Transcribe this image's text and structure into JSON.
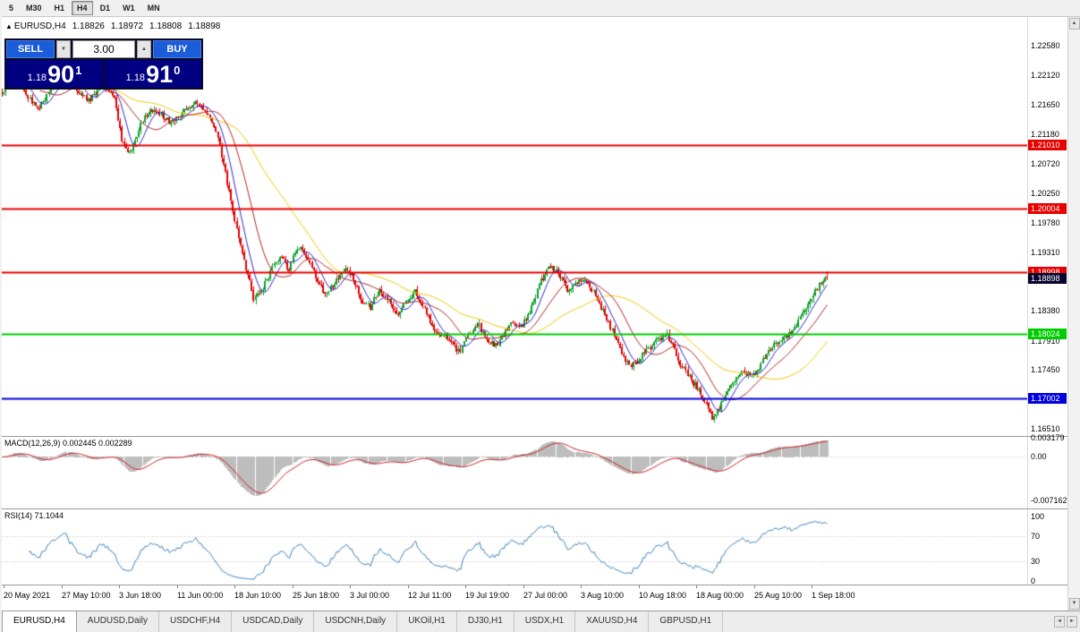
{
  "toolbar": {
    "timeframes": [
      {
        "label": "5",
        "active": false
      },
      {
        "label": "M30",
        "active": false
      },
      {
        "label": "H1",
        "active": false
      },
      {
        "label": "H4",
        "active": true
      },
      {
        "label": "D1",
        "active": false
      },
      {
        "label": "W1",
        "active": false
      },
      {
        "label": "MN",
        "active": false
      }
    ]
  },
  "header": {
    "symbol": "EURUSD,H4",
    "open": "1.18826",
    "high": "1.18972",
    "low": "1.18808",
    "close": "1.18898"
  },
  "icons": {
    "header_marker": "▲",
    "spinner_up": "▲",
    "spinner_down": "▼",
    "scroll_up": "▲",
    "scroll_down": "▼",
    "scroll_left": "◄",
    "scroll_right": "►"
  },
  "trade_panel": {
    "sell_label": "SELL",
    "buy_label": "BUY",
    "volume": "3.00",
    "sell_price": {
      "prefix": "1.18",
      "big": "90",
      "sup": "1"
    },
    "buy_price": {
      "prefix": "1.18",
      "big": "91",
      "sup": "0"
    }
  },
  "price_axis": {
    "ticks": [
      "1.22580",
      "1.22120",
      "1.21650",
      "1.21180",
      "1.20720",
      "1.20250",
      "1.19780",
      "1.19310",
      "1.18380",
      "1.17910",
      "1.17450",
      "1.16510"
    ],
    "current": {
      "label": "1.18898",
      "bg": "#05052d"
    }
  },
  "levels": [
    {
      "label": "1.21010",
      "value": 1.2101,
      "color": "#e60000"
    },
    {
      "label": "1.20004",
      "value": 1.20004,
      "color": "#e60000"
    },
    {
      "label": "1.18998",
      "value": 1.18998,
      "color": "#e60000"
    },
    {
      "label": "1.18024",
      "value": 1.18024,
      "color": "#00cc00"
    },
    {
      "label": "1.17002",
      "value": 1.17002,
      "color": "#0000dd"
    }
  ],
  "macd": {
    "label": "MACD(12,26,9) 0.002445 0.002289",
    "ticks": [
      {
        "label": "0.003179",
        "value": 0.003179
      },
      {
        "label": "0.00",
        "value": 0
      },
      {
        "label": "-0.007162",
        "value": -0.007162
      }
    ],
    "hist_color": "#bdbdbd",
    "signal_color": "#cc2020"
  },
  "rsi": {
    "label": "RSI(14) 71.1044",
    "ticks": [
      {
        "label": "100",
        "value": 100
      },
      {
        "label": "70",
        "value": 70
      },
      {
        "label": "30",
        "value": 30
      },
      {
        "label": "0",
        "value": 0
      }
    ],
    "line_color": "#3c82be",
    "levels": [
      70,
      30
    ]
  },
  "time_axis": {
    "labels": [
      "20 May 2021",
      "27 May 10:00",
      "3 Jun 18:00",
      "11 Jun 00:00",
      "18 Jun 10:00",
      "25 Jun 18:00",
      "3 Jul 00:00",
      "12 Jul 11:00",
      "19 Jul 19:00",
      "27 Jul 00:00",
      "3 Aug 10:00",
      "10 Aug 18:00",
      "18 Aug 00:00",
      "25 Aug 10:00",
      "1 Sep 18:00"
    ]
  },
  "tabs": [
    {
      "label": "EURUSD,H4",
      "active": true
    },
    {
      "label": "AUDUSD,Daily",
      "active": false
    },
    {
      "label": "USDCHF,H4",
      "active": false
    },
    {
      "label": "USDCAD,Daily",
      "active": false
    },
    {
      "label": "USDCNH,Daily",
      "active": false
    },
    {
      "label": "UKOil,H1",
      "active": false
    },
    {
      "label": "DJ30,H1",
      "active": false
    },
    {
      "label": "USDX,H1",
      "active": false
    },
    {
      "label": "XAUUSD,H4",
      "active": false
    },
    {
      "label": "GBPUSD,H1",
      "active": false
    }
  ],
  "chart_data": {
    "type": "candlestick",
    "symbol": "EURUSD",
    "timeframe": "H4",
    "last_ohlc": {
      "open": 1.18826,
      "high": 1.18972,
      "low": 1.18808,
      "close": 1.18898
    },
    "bid": 1.18901,
    "ask": 1.1891,
    "price_range": {
      "top": 1.2304,
      "bottom": 1.164
    },
    "macd_range": {
      "max": 0.0033,
      "min": -0.0085
    },
    "up_color": "#0ca02c",
    "down_color": "#e00000",
    "ma_colors": {
      "fast": "#2828c8",
      "mid": "#b22222",
      "slow": "#f0c800"
    },
    "moving_average_periods": {
      "fast": 8,
      "mid": 21,
      "slow": 55
    },
    "indicators": {
      "macd": {
        "fast": 12,
        "slow": 26,
        "signal": 9,
        "last_main": 0.002445,
        "last_signal": 0.002289
      },
      "rsi": {
        "period": 14,
        "last": 71.1044
      }
    },
    "candle_count": 440,
    "candle_spacing": 2.1,
    "anchors": [
      [
        0,
        1.2185
      ],
      [
        14,
        1.2215
      ],
      [
        28,
        1.218
      ],
      [
        42,
        1.216
      ],
      [
        56,
        1.2195
      ],
      [
        70,
        1.2218
      ],
      [
        84,
        1.219
      ],
      [
        98,
        1.217
      ],
      [
        112,
        1.22
      ],
      [
        126,
        1.218
      ],
      [
        134,
        1.211
      ],
      [
        144,
        1.2085
      ],
      [
        154,
        1.213
      ],
      [
        164,
        1.2155
      ],
      [
        176,
        1.215
      ],
      [
        190,
        1.2135
      ],
      [
        204,
        1.2155
      ],
      [
        216,
        1.217
      ],
      [
        228,
        1.2155
      ],
      [
        240,
        1.212
      ],
      [
        252,
        1.204
      ],
      [
        264,
        1.196
      ],
      [
        274,
        1.19
      ],
      [
        282,
        1.1856
      ],
      [
        292,
        1.1875
      ],
      [
        302,
        1.1905
      ],
      [
        312,
        1.1925
      ],
      [
        320,
        1.1902
      ],
      [
        330,
        1.194
      ],
      [
        340,
        1.1928
      ],
      [
        352,
        1.189
      ],
      [
        362,
        1.1862
      ],
      [
        372,
        1.1882
      ],
      [
        382,
        1.1905
      ],
      [
        392,
        1.189
      ],
      [
        402,
        1.1855
      ],
      [
        412,
        1.1845
      ],
      [
        422,
        1.1872
      ],
      [
        432,
        1.1855
      ],
      [
        442,
        1.183
      ],
      [
        452,
        1.1852
      ],
      [
        462,
        1.1868
      ],
      [
        472,
        1.184
      ],
      [
        482,
        1.1812
      ],
      [
        492,
        1.18
      ],
      [
        502,
        1.1788
      ],
      [
        512,
        1.1772
      ],
      [
        522,
        1.1802
      ],
      [
        532,
        1.1818
      ],
      [
        542,
        1.179
      ],
      [
        552,
        1.1782
      ],
      [
        562,
        1.1805
      ],
      [
        572,
        1.1822
      ],
      [
        582,
        1.1815
      ],
      [
        592,
        1.1845
      ],
      [
        602,
        1.1885
      ],
      [
        612,
        1.1908
      ],
      [
        622,
        1.1898
      ],
      [
        632,
        1.1872
      ],
      [
        642,
        1.1882
      ],
      [
        652,
        1.189
      ],
      [
        662,
        1.1868
      ],
      [
        672,
        1.1838
      ],
      [
        682,
        1.1808
      ],
      [
        692,
        1.1775
      ],
      [
        702,
        1.1748
      ],
      [
        712,
        1.1762
      ],
      [
        722,
        1.1778
      ],
      [
        732,
        1.1792
      ],
      [
        742,
        1.1802
      ],
      [
        750,
        1.1786
      ],
      [
        758,
        1.1755
      ],
      [
        766,
        1.1738
      ],
      [
        776,
        1.1718
      ],
      [
        786,
        1.1695
      ],
      [
        794,
        1.1668
      ],
      [
        800,
        1.1678
      ],
      [
        810,
        1.1712
      ],
      [
        820,
        1.1728
      ],
      [
        830,
        1.1742
      ],
      [
        840,
        1.1736
      ],
      [
        850,
        1.1758
      ],
      [
        860,
        1.1778
      ],
      [
        870,
        1.1792
      ],
      [
        880,
        1.1802
      ],
      [
        890,
        1.1822
      ],
      [
        900,
        1.1848
      ],
      [
        910,
        1.1872
      ],
      [
        918,
        1.1888
      ],
      [
        922,
        1.189
      ]
    ]
  }
}
